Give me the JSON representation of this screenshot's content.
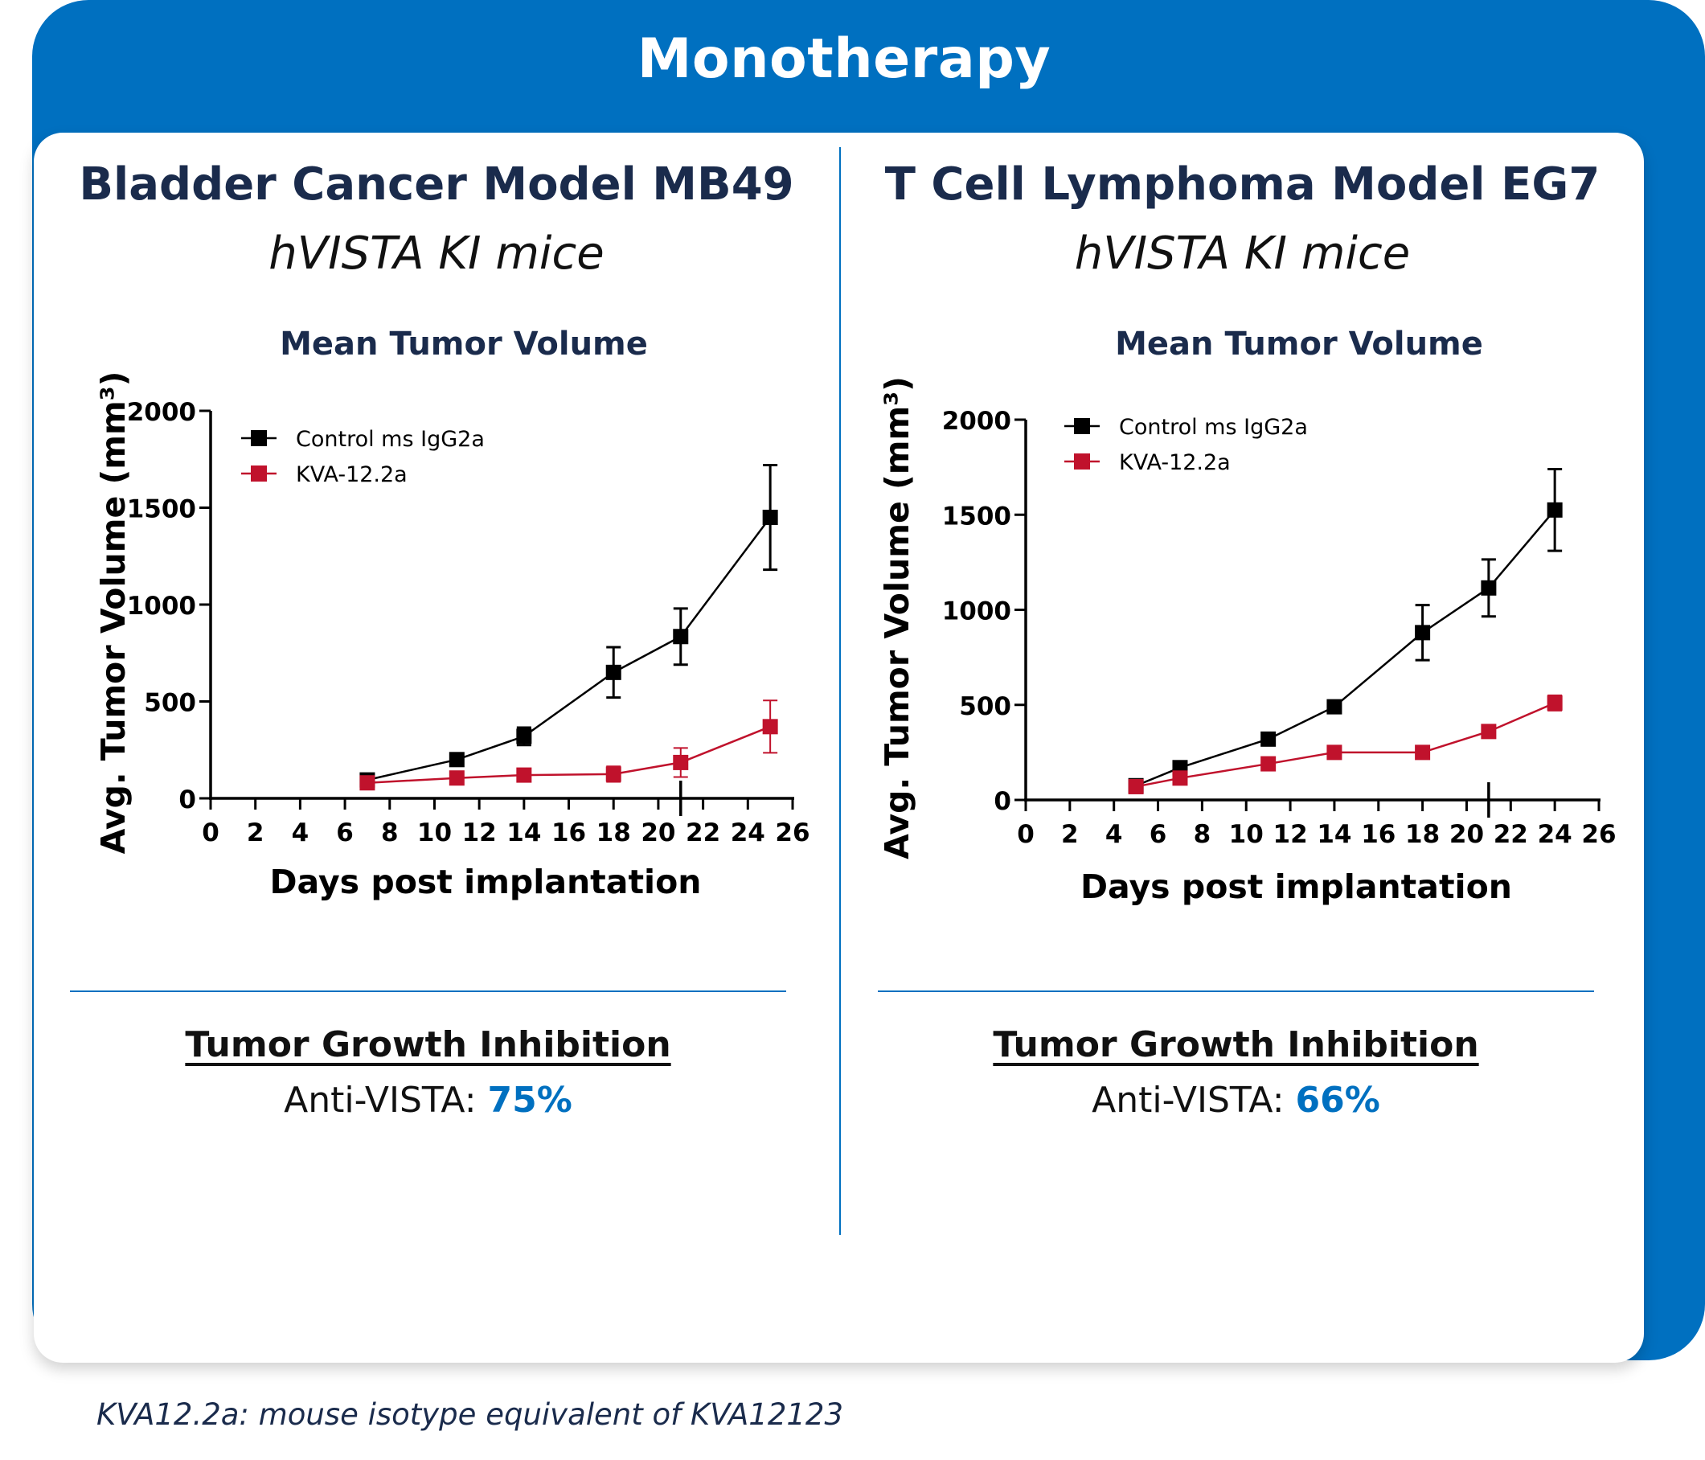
{
  "header": {
    "title": "Monotherapy"
  },
  "panels": [
    {
      "title": "Bladder Cancer Model MB49",
      "subtitle": "hVISTA KI mice",
      "chart_heading": "Mean Tumor Volume",
      "tgi_heading": "Tumor Growth Inhibition",
      "tgi_label": "Anti-VISTA: ",
      "tgi_value": "75%"
    },
    {
      "title": "T Cell Lymphoma Model EG7",
      "subtitle": "hVISTA KI mice",
      "chart_heading": "Mean Tumor Volume",
      "tgi_heading": "Tumor Growth Inhibition",
      "tgi_label": "Anti-VISTA: ",
      "tgi_value": "66%"
    }
  ],
  "footnote": "KVA12.2a: mouse isotype equivalent of KVA12123",
  "colors": {
    "brand": "#0070c0",
    "control": "#000000",
    "treatment": "#c0122c"
  },
  "chart_data": [
    {
      "type": "line",
      "title": "Mean Tumor Volume",
      "xlabel": "Days post implantation",
      "ylabel": "Avg. Tumor Volume (mm³)",
      "xlim": [
        0,
        26
      ],
      "ylim": [
        0,
        2000
      ],
      "xticks": [
        0,
        2,
        4,
        6,
        8,
        10,
        12,
        14,
        16,
        18,
        20,
        22,
        24,
        26
      ],
      "yticks": [
        0,
        500,
        1000,
        1500,
        2000
      ],
      "legend": "top-left",
      "series": [
        {
          "name": "Control ms IgG2a",
          "color": "#000000",
          "x": [
            7,
            11,
            14,
            18,
            21,
            25
          ],
          "y": [
            95,
            200,
            320,
            650,
            835,
            1450
          ],
          "err": [
            10,
            25,
            45,
            130,
            145,
            270
          ]
        },
        {
          "name": "KVA-12.2a",
          "color": "#c0122c",
          "x": [
            7,
            11,
            14,
            18,
            21,
            25
          ],
          "y": [
            80,
            105,
            120,
            125,
            185,
            370
          ],
          "err": [
            10,
            20,
            20,
            40,
            75,
            135
          ]
        }
      ]
    },
    {
      "type": "line",
      "title": "Mean Tumor Volume",
      "xlabel": "Days post implantation",
      "ylabel": "Avg. Tumor Volume (mm³)",
      "xlim": [
        0,
        26
      ],
      "ylim": [
        0,
        2000
      ],
      "xticks": [
        0,
        2,
        4,
        6,
        8,
        10,
        12,
        14,
        16,
        18,
        20,
        22,
        24,
        26
      ],
      "yticks": [
        0,
        500,
        1000,
        1500,
        2000
      ],
      "legend": "top-left",
      "series": [
        {
          "name": "Control ms IgG2a",
          "color": "#000000",
          "x": [
            5,
            7,
            11,
            14,
            18,
            21,
            24
          ],
          "y": [
            75,
            170,
            320,
            490,
            880,
            1115,
            1525
          ],
          "err": [
            5,
            15,
            25,
            25,
            145,
            150,
            215
          ]
        },
        {
          "name": "KVA-12.2a",
          "color": "#c0122c",
          "x": [
            5,
            7,
            11,
            14,
            18,
            21,
            24
          ],
          "y": [
            70,
            115,
            190,
            250,
            250,
            360,
            510
          ],
          "err": [
            5,
            10,
            15,
            15,
            15,
            15,
            40
          ]
        }
      ]
    }
  ]
}
